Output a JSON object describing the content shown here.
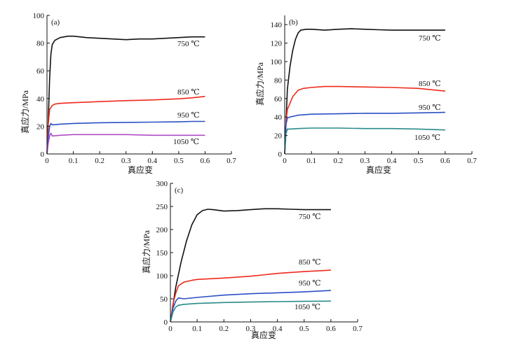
{
  "colors": {
    "axis": "#111111",
    "750 ℃": "#111111",
    "850 ℃": "#ee2a1c",
    "950 ℃": "#2b4fc4",
    "1050 ℃ (a)": "#b04cc6",
    "1050 ℃": "#2a8a8a"
  },
  "chart_data": [
    {
      "type": "line",
      "panel_label": "(a)",
      "xlabel": "真应变",
      "ylabel": "真应力/MPa",
      "xlim": [
        0,
        0.7
      ],
      "ylim": [
        0,
        100
      ],
      "xticks": [
        "0",
        "0.1",
        "0.2",
        "0.3",
        "0.4",
        "0.5",
        "0.6",
        "0.7"
      ],
      "yticks": [
        "0",
        "20",
        "40",
        "60",
        "80",
        "100"
      ],
      "series": [
        {
          "name": "750 ℃",
          "color": "#111111",
          "x": [
            0,
            0.005,
            0.01,
            0.015,
            0.02,
            0.03,
            0.05,
            0.08,
            0.1,
            0.15,
            0.2,
            0.25,
            0.3,
            0.35,
            0.4,
            0.45,
            0.5,
            0.55,
            0.6
          ],
          "y": [
            0,
            25,
            55,
            72,
            79,
            82,
            84,
            85,
            85,
            84,
            83.5,
            83,
            82.5,
            83,
            83,
            83.5,
            84,
            84.5,
            84.5
          ]
        },
        {
          "name": "850 ℃",
          "color": "#ee2a1c",
          "x": [
            0,
            0.005,
            0.01,
            0.02,
            0.03,
            0.05,
            0.1,
            0.2,
            0.3,
            0.4,
            0.5,
            0.55,
            0.6
          ],
          "y": [
            0,
            22,
            32,
            35,
            36,
            36.5,
            37,
            37.8,
            38.5,
            39,
            39.8,
            40.5,
            41.5
          ]
        },
        {
          "name": "950 ℃",
          "color": "#2b4fc4",
          "x": [
            0,
            0.005,
            0.01,
            0.015,
            0.02,
            0.05,
            0.1,
            0.2,
            0.3,
            0.4,
            0.5,
            0.55,
            0.6
          ],
          "y": [
            0,
            12,
            20,
            22,
            21,
            21.5,
            22,
            22.5,
            22.8,
            23,
            23.2,
            23.5,
            23.5
          ]
        },
        {
          "name": "1050 ℃",
          "color": "#b04cc6",
          "x": [
            0,
            0.005,
            0.01,
            0.015,
            0.02,
            0.05,
            0.1,
            0.2,
            0.3,
            0.4,
            0.5,
            0.6
          ],
          "y": [
            0,
            8,
            13,
            15,
            13,
            13.5,
            14,
            14,
            14,
            13.5,
            13.5,
            13.5
          ]
        }
      ],
      "series_labels": [
        "750 ℃",
        "850 ℃",
        "950 ℃",
        "1050 ℃"
      ]
    },
    {
      "type": "line",
      "panel_label": "(b)",
      "xlabel": "真应变",
      "ylabel": "真应力/MPa",
      "xlim": [
        0,
        0.7
      ],
      "ylim": [
        0,
        150
      ],
      "xticks": [
        "0",
        "0.1",
        "0.2",
        "0.3",
        "0.4",
        "0.5",
        "0.6",
        "0.7"
      ],
      "yticks": [
        "0",
        "20",
        "40",
        "60",
        "80",
        "100",
        "120",
        "140"
      ],
      "series": [
        {
          "name": "750 ℃",
          "color": "#111111",
          "x": [
            0,
            0.01,
            0.02,
            0.03,
            0.04,
            0.05,
            0.06,
            0.08,
            0.1,
            0.15,
            0.2,
            0.25,
            0.3,
            0.35,
            0.4,
            0.5,
            0.6
          ],
          "y": [
            0,
            70,
            95,
            112,
            124,
            131,
            134,
            135,
            135,
            134,
            135,
            135.5,
            135,
            134.5,
            134,
            134,
            134
          ]
        },
        {
          "name": "850 ℃",
          "color": "#ee2a1c",
          "x": [
            0,
            0.005,
            0.01,
            0.02,
            0.03,
            0.05,
            0.07,
            0.1,
            0.15,
            0.2,
            0.3,
            0.4,
            0.5,
            0.6
          ],
          "y": [
            0,
            35,
            48,
            55,
            62,
            69,
            71,
            72,
            73,
            73,
            72.5,
            72,
            71,
            68
          ]
        },
        {
          "name": "950 ℃",
          "color": "#2b4fc4",
          "x": [
            0,
            0.005,
            0.01,
            0.02,
            0.05,
            0.1,
            0.2,
            0.3,
            0.4,
            0.5,
            0.6
          ],
          "y": [
            0,
            32,
            39,
            40,
            42,
            43,
            43.5,
            44,
            44,
            44.5,
            45
          ]
        },
        {
          "name": "1050 ℃",
          "color": "#2a8a8a",
          "x": [
            0,
            0.005,
            0.01,
            0.02,
            0.05,
            0.1,
            0.2,
            0.3,
            0.4,
            0.5,
            0.6
          ],
          "y": [
            0,
            22,
            27,
            27,
            27.5,
            28,
            28,
            27.5,
            27.5,
            27,
            26
          ]
        }
      ],
      "series_labels": [
        "750 ℃",
        "850 ℃",
        "950 ℃",
        "1050 ℃"
      ]
    },
    {
      "type": "line",
      "panel_label": "(c)",
      "xlabel": "真应变",
      "ylabel": "真应力/MPa",
      "xlim": [
        0,
        0.7
      ],
      "ylim": [
        0,
        300
      ],
      "xticks": [
        "0",
        "0.1",
        "0.2",
        "0.3",
        "0.4",
        "0.5",
        "0.6",
        "0.7"
      ],
      "yticks": [
        "0",
        "50",
        "100",
        "150",
        "200",
        "250",
        "300"
      ],
      "series": [
        {
          "name": "750 ℃",
          "color": "#111111",
          "x": [
            0,
            0.02,
            0.04,
            0.06,
            0.08,
            0.1,
            0.12,
            0.14,
            0.16,
            0.2,
            0.25,
            0.3,
            0.35,
            0.4,
            0.45,
            0.5,
            0.55,
            0.6
          ],
          "y": [
            0,
            75,
            130,
            175,
            210,
            232,
            241,
            244,
            243,
            240,
            241,
            243,
            245,
            245,
            244,
            243,
            243,
            243
          ]
        },
        {
          "name": "850 ℃",
          "color": "#ee2a1c",
          "x": [
            0,
            0.01,
            0.02,
            0.03,
            0.05,
            0.08,
            0.1,
            0.2,
            0.3,
            0.4,
            0.5,
            0.6
          ],
          "y": [
            0,
            40,
            62,
            78,
            86,
            90,
            92,
            95,
            99,
            105,
            109,
            112
          ]
        },
        {
          "name": "950 ℃",
          "color": "#2b4fc4",
          "x": [
            0,
            0.01,
            0.02,
            0.03,
            0.05,
            0.1,
            0.2,
            0.3,
            0.4,
            0.5,
            0.6
          ],
          "y": [
            0,
            30,
            45,
            52,
            50,
            53,
            58,
            61,
            63,
            65,
            68
          ]
        },
        {
          "name": "1050 ℃",
          "color": "#2a8a8a",
          "x": [
            0,
            0.01,
            0.02,
            0.03,
            0.05,
            0.1,
            0.2,
            0.3,
            0.4,
            0.5,
            0.6
          ],
          "y": [
            0,
            22,
            32,
            36,
            38,
            40,
            42,
            43,
            44,
            44.5,
            45
          ]
        }
      ],
      "series_labels": [
        "750 ℃",
        "850 ℃",
        "950 ℃",
        "1050 ℃"
      ]
    }
  ]
}
